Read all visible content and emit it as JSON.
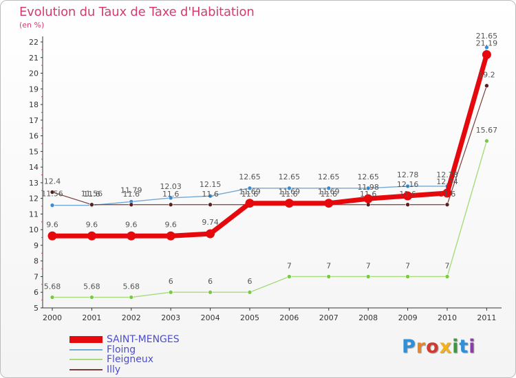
{
  "chart_data": {
    "type": "line",
    "title": "Evolution du Taux de Taxe d'Habitation",
    "ylabel": "(en %)",
    "xlabel": "",
    "categories": [
      "2000",
      "2001",
      "2002",
      "2003",
      "2004",
      "2005",
      "2006",
      "2007",
      "2008",
      "2009",
      "2010",
      "2011"
    ],
    "y_ticks": [
      "5",
      "6",
      "7",
      "8",
      "9",
      "10",
      "11",
      "12",
      "13",
      "14",
      "15",
      "16",
      "17",
      "18",
      "19",
      "20",
      "21",
      "22"
    ],
    "ylim": [
      5,
      22
    ],
    "grid": false,
    "series": [
      {
        "name": "SAINT-MENGES",
        "color": "#e5080c",
        "values": [
          9.6,
          9.6,
          9.6,
          9.6,
          9.74,
          11.69,
          11.69,
          11.69,
          11.98,
          12.16,
          12.34,
          21.19
        ],
        "labels": [
          "9.6",
          "9.6",
          "9.6",
          "9.6",
          "9.74",
          "11.69",
          "11.69",
          "11.69",
          "11.98",
          "12.16",
          "12.34",
          "21.19"
        ]
      },
      {
        "name": "Floing",
        "color": "#72a8d4",
        "values": [
          11.56,
          11.56,
          11.79,
          12.03,
          12.15,
          12.65,
          12.65,
          12.65,
          12.65,
          12.78,
          12.78,
          21.65
        ],
        "labels": [
          "11.56",
          "11.56",
          "11.79",
          "12.03",
          "12.15",
          "12.65",
          "12.65",
          "12.65",
          "12.65",
          "12.78",
          "12.78",
          "21.65"
        ]
      },
      {
        "name": "Fleigneux",
        "color": "#a7db7a",
        "values": [
          5.68,
          5.68,
          5.68,
          6,
          6,
          6,
          7,
          7,
          7,
          7,
          7,
          15.67
        ],
        "labels": [
          "5.68",
          "5.68",
          "5.68",
          "6",
          "6",
          "6",
          "7",
          "7",
          "7",
          "7",
          "7",
          "15.67"
        ]
      },
      {
        "name": "Illy",
        "color": "#7d3a3a",
        "values": [
          12.4,
          11.6,
          11.6,
          11.6,
          11.6,
          11.6,
          11.6,
          11.6,
          11.6,
          11.6,
          11.6,
          19.2
        ],
        "labels": [
          "12.4",
          "11.6",
          "11.6",
          "11.6",
          "11.6",
          "11.6",
          "11.6",
          "11.6",
          "11.6",
          "11.6",
          "11.6",
          "19.2"
        ]
      }
    ]
  },
  "logo": {
    "letters": [
      "P",
      "r",
      "o",
      "x",
      "i",
      "t",
      "i"
    ],
    "colors": [
      "#2f8fd8",
      "#e7852a",
      "#d13a2f",
      "#f3b21b",
      "#3a9b3a",
      "#2f8fd8",
      "#8b3ca8"
    ]
  }
}
